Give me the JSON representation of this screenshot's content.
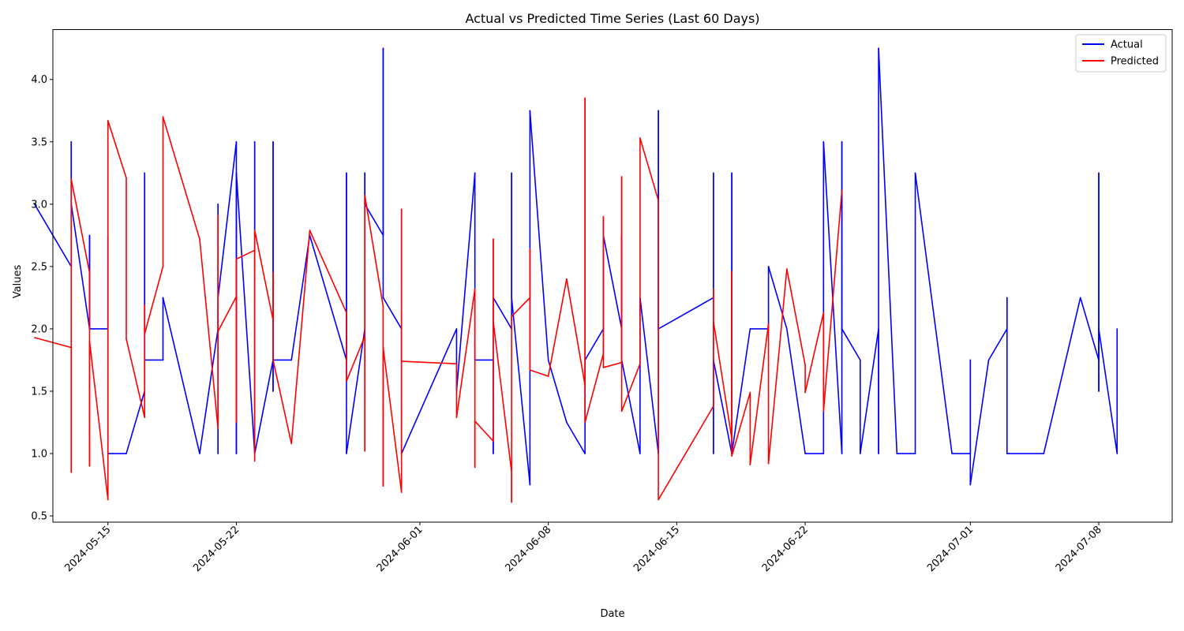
{
  "chart_data": {
    "type": "line",
    "title": "Actual vs Predicted Time Series (Last 60 Days)",
    "xlabel": "Date",
    "ylabel": "Values",
    "xlim": [
      "2024-05-12",
      "2024-07-12"
    ],
    "ylim": [
      0.45,
      4.4
    ],
    "x_ticks": [
      "2024-05-15",
      "2024-05-22",
      "2024-06-01",
      "2024-06-08",
      "2024-06-15",
      "2024-06-22",
      "2024-07-01",
      "2024-07-08"
    ],
    "y_ticks": [
      "0.5",
      "1.0",
      "1.5",
      "2.0",
      "2.5",
      "3.0",
      "3.5",
      "4.0"
    ],
    "grid": false,
    "legend_position": "top-right",
    "series": [
      {
        "name": "Actual",
        "color": "#0000ff",
        "points": [
          [
            "2024-05-11",
            3.0
          ],
          [
            "2024-05-13",
            2.5
          ],
          [
            "2024-05-13",
            3.5
          ],
          [
            "2024-05-13",
            3.0
          ],
          [
            "2024-05-14",
            2.0
          ],
          [
            "2024-05-14",
            2.75
          ],
          [
            "2024-05-14",
            2.0
          ],
          [
            "2024-05-15",
            2.0
          ],
          [
            "2024-05-15",
            2.75
          ],
          [
            "2024-05-15",
            1.0
          ],
          [
            "2024-05-16",
            1.0
          ],
          [
            "2024-05-17",
            1.5
          ],
          [
            "2024-05-17",
            3.25
          ],
          [
            "2024-05-17",
            1.75
          ],
          [
            "2024-05-18",
            1.75
          ],
          [
            "2024-05-18",
            2.25
          ],
          [
            "2024-05-20",
            1.0
          ],
          [
            "2024-05-21",
            2.0
          ],
          [
            "2024-05-21",
            3.0
          ],
          [
            "2024-05-21",
            1.0
          ],
          [
            "2024-05-21",
            2.25
          ],
          [
            "2024-05-22",
            3.5
          ],
          [
            "2024-05-22",
            1.0
          ],
          [
            "2024-05-22",
            3.25
          ],
          [
            "2024-05-23",
            1.0
          ],
          [
            "2024-05-23",
            3.5
          ],
          [
            "2024-05-23",
            1.0
          ],
          [
            "2024-05-24",
            1.75
          ],
          [
            "2024-05-24",
            3.5
          ],
          [
            "2024-05-24",
            1.5
          ],
          [
            "2024-05-24",
            1.75
          ],
          [
            "2024-05-25",
            1.75
          ],
          [
            "2024-05-26",
            2.75
          ],
          [
            "2024-05-28",
            1.75
          ],
          [
            "2024-05-28",
            3.25
          ],
          [
            "2024-05-28",
            1.0
          ],
          [
            "2024-05-29",
            2.0
          ],
          [
            "2024-05-29",
            3.25
          ],
          [
            "2024-05-29",
            3.0
          ],
          [
            "2024-05-30",
            2.75
          ],
          [
            "2024-05-30",
            4.25
          ],
          [
            "2024-05-30",
            2.25
          ],
          [
            "2024-05-31",
            2.0
          ],
          [
            "2024-05-31",
            1.0
          ],
          [
            "2024-06-03",
            2.0
          ],
          [
            "2024-06-03",
            1.5
          ],
          [
            "2024-06-04",
            3.25
          ],
          [
            "2024-06-04",
            1.75
          ],
          [
            "2024-06-05",
            1.75
          ],
          [
            "2024-06-05",
            1.0
          ],
          [
            "2024-06-05",
            2.25
          ],
          [
            "2024-06-06",
            2.0
          ],
          [
            "2024-06-06",
            3.25
          ],
          [
            "2024-06-06",
            2.25
          ],
          [
            "2024-06-07",
            0.75
          ],
          [
            "2024-06-07",
            3.75
          ],
          [
            "2024-06-08",
            1.75
          ],
          [
            "2024-06-09",
            1.25
          ],
          [
            "2024-06-10",
            1.0
          ],
          [
            "2024-06-10",
            1.75
          ],
          [
            "2024-06-11",
            2.0
          ],
          [
            "2024-06-11",
            2.75
          ],
          [
            "2024-06-12",
            2.0
          ],
          [
            "2024-06-12",
            2.75
          ],
          [
            "2024-06-12",
            1.75
          ],
          [
            "2024-06-13",
            1.0
          ],
          [
            "2024-06-13",
            2.25
          ],
          [
            "2024-06-14",
            1.0
          ],
          [
            "2024-06-14",
            3.75
          ],
          [
            "2024-06-14",
            2.0
          ],
          [
            "2024-06-17",
            2.25
          ],
          [
            "2024-06-17",
            3.25
          ],
          [
            "2024-06-17",
            1.0
          ],
          [
            "2024-06-17",
            1.75
          ],
          [
            "2024-06-18",
            1.0
          ],
          [
            "2024-06-18",
            3.25
          ],
          [
            "2024-06-18",
            1.0
          ],
          [
            "2024-06-19",
            2.0
          ],
          [
            "2024-06-20",
            2.0
          ],
          [
            "2024-06-20",
            2.5
          ],
          [
            "2024-06-21",
            2.0
          ],
          [
            "2024-06-22",
            1.0
          ],
          [
            "2024-06-23",
            1.0
          ],
          [
            "2024-06-23",
            3.5
          ],
          [
            "2024-06-24",
            1.0
          ],
          [
            "2024-06-24",
            3.5
          ],
          [
            "2024-06-24",
            2.0
          ],
          [
            "2024-06-25",
            1.75
          ],
          [
            "2024-06-25",
            1.0
          ],
          [
            "2024-06-26",
            2.0
          ],
          [
            "2024-06-26",
            1.0
          ],
          [
            "2024-06-26",
            4.25
          ],
          [
            "2024-06-27",
            1.0
          ],
          [
            "2024-06-28",
            1.0
          ],
          [
            "2024-06-28",
            3.25
          ],
          [
            "2024-06-30",
            1.0
          ],
          [
            "2024-07-01",
            1.0
          ],
          [
            "2024-07-01",
            1.75
          ],
          [
            "2024-07-01",
            0.75
          ],
          [
            "2024-07-02",
            1.75
          ],
          [
            "2024-07-03",
            2.0
          ],
          [
            "2024-07-03",
            2.25
          ],
          [
            "2024-07-03",
            1.0
          ],
          [
            "2024-07-05",
            1.0
          ],
          [
            "2024-07-07",
            2.25
          ],
          [
            "2024-07-08",
            1.75
          ],
          [
            "2024-07-08",
            3.25
          ],
          [
            "2024-07-08",
            1.5
          ],
          [
            "2024-07-08",
            2.0
          ],
          [
            "2024-07-09",
            1.0
          ],
          [
            "2024-07-09",
            2.0
          ]
        ]
      },
      {
        "name": "Predicted",
        "color": "#ff0000",
        "points": [
          [
            "2024-05-11",
            1.93
          ],
          [
            "2024-05-13",
            1.85
          ],
          [
            "2024-05-13",
            0.85
          ],
          [
            "2024-05-13",
            3.2
          ],
          [
            "2024-05-14",
            2.45
          ],
          [
            "2024-05-14",
            0.9
          ],
          [
            "2024-05-14",
            1.9
          ],
          [
            "2024-05-15",
            0.63
          ],
          [
            "2024-05-15",
            3.67
          ],
          [
            "2024-05-16",
            3.21
          ],
          [
            "2024-05-16",
            1.92
          ],
          [
            "2024-05-17",
            1.29
          ],
          [
            "2024-05-17",
            2.19
          ],
          [
            "2024-05-17",
            1.96
          ],
          [
            "2024-05-18",
            2.5
          ],
          [
            "2024-05-18",
            3.7
          ],
          [
            "2024-05-20",
            2.72
          ],
          [
            "2024-05-21",
            1.2
          ],
          [
            "2024-05-21",
            2.91
          ],
          [
            "2024-05-21",
            1.98
          ],
          [
            "2024-05-22",
            2.26
          ],
          [
            "2024-05-22",
            1.25
          ],
          [
            "2024-05-22",
            2.56
          ],
          [
            "2024-05-23",
            2.63
          ],
          [
            "2024-05-23",
            0.94
          ],
          [
            "2024-05-23",
            2.79
          ],
          [
            "2024-05-24",
            2.07
          ],
          [
            "2024-05-24",
            2.45
          ],
          [
            "2024-05-24",
            1.75
          ],
          [
            "2024-05-25",
            1.08
          ],
          [
            "2024-05-26",
            2.79
          ],
          [
            "2024-05-28",
            2.13
          ],
          [
            "2024-05-28",
            1.58
          ],
          [
            "2024-05-29",
            1.94
          ],
          [
            "2024-05-29",
            1.02
          ],
          [
            "2024-05-29",
            3.07
          ],
          [
            "2024-05-30",
            2.18
          ],
          [
            "2024-05-30",
            0.74
          ],
          [
            "2024-05-30",
            1.85
          ],
          [
            "2024-05-31",
            0.69
          ],
          [
            "2024-05-31",
            2.96
          ],
          [
            "2024-05-31",
            1.74
          ],
          [
            "2024-06-03",
            1.72
          ],
          [
            "2024-06-03",
            1.29
          ],
          [
            "2024-06-04",
            2.32
          ],
          [
            "2024-06-04",
            0.89
          ],
          [
            "2024-06-04",
            1.26
          ],
          [
            "2024-06-05",
            1.1
          ],
          [
            "2024-06-05",
            2.72
          ],
          [
            "2024-06-05",
            2.06
          ],
          [
            "2024-06-06",
            0.85
          ],
          [
            "2024-06-06",
            0.61
          ],
          [
            "2024-06-06",
            2.1
          ],
          [
            "2024-06-07",
            2.25
          ],
          [
            "2024-06-07",
            2.64
          ],
          [
            "2024-06-07",
            1.67
          ],
          [
            "2024-06-08",
            1.62
          ],
          [
            "2024-06-09",
            2.4
          ],
          [
            "2024-06-10",
            1.55
          ],
          [
            "2024-06-10",
            3.85
          ],
          [
            "2024-06-10",
            1.25
          ],
          [
            "2024-06-11",
            1.8
          ],
          [
            "2024-06-11",
            2.9
          ],
          [
            "2024-06-11",
            1.69
          ],
          [
            "2024-06-12",
            1.73
          ],
          [
            "2024-06-12",
            3.22
          ],
          [
            "2024-06-12",
            1.34
          ],
          [
            "2024-06-13",
            1.72
          ],
          [
            "2024-06-13",
            3.53
          ],
          [
            "2024-06-14",
            3.03
          ],
          [
            "2024-06-14",
            0.63
          ],
          [
            "2024-06-17",
            1.38
          ],
          [
            "2024-06-17",
            2.32
          ],
          [
            "2024-06-17",
            2.06
          ],
          [
            "2024-06-18",
            1.12
          ],
          [
            "2024-06-18",
            2.46
          ],
          [
            "2024-06-18",
            0.98
          ],
          [
            "2024-06-19",
            1.49
          ],
          [
            "2024-06-19",
            0.91
          ],
          [
            "2024-06-20",
            2.04
          ],
          [
            "2024-06-20",
            0.92
          ],
          [
            "2024-06-21",
            2.48
          ],
          [
            "2024-06-22",
            1.71
          ],
          [
            "2024-06-22",
            1.49
          ],
          [
            "2024-06-23",
            2.13
          ],
          [
            "2024-06-23",
            1.34
          ],
          [
            "2024-06-24",
            3.11
          ]
        ]
      }
    ]
  }
}
